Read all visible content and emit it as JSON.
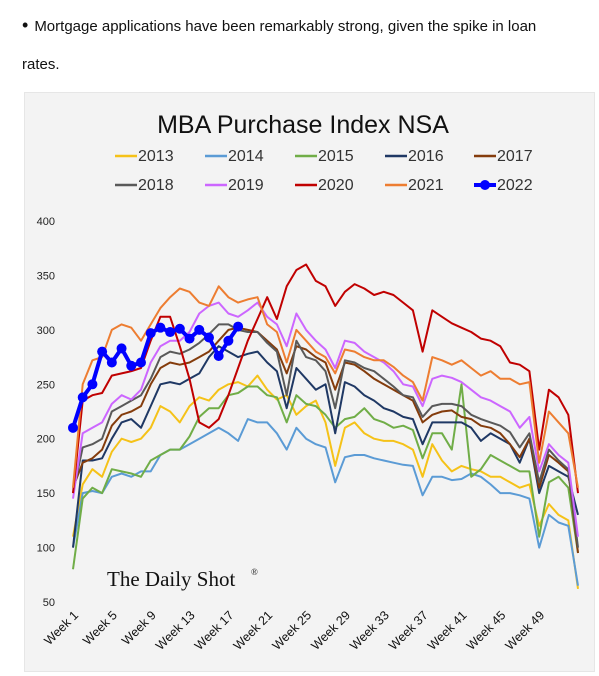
{
  "note": {
    "bullet": "•",
    "line1": "Mortgage applications have been remarkably strong, given the spike in loan",
    "line2": "rates."
  },
  "watermark": "The Daily Shot",
  "watermark_mark": "®",
  "chart_data": {
    "type": "line",
    "title": "MBA Purchase Index NSA",
    "xlabel": "",
    "ylabel": "",
    "ylim": [
      50,
      400
    ],
    "yticks": [
      50,
      100,
      150,
      200,
      250,
      300,
      350,
      400
    ],
    "x_tick_labels": [
      "Week 1",
      "Week 5",
      "Week 9",
      "Week 13",
      "Week 17",
      "Week 21",
      "Week 25",
      "Week 29",
      "Week 33",
      "Week 37",
      "Week 41",
      "Week 45",
      "Week 49"
    ],
    "x_tick_weeks": [
      1,
      5,
      9,
      13,
      17,
      21,
      25,
      29,
      33,
      37,
      41,
      45,
      49
    ],
    "grid": false,
    "legend": "top",
    "series": [
      {
        "name": "2013",
        "color": "#f5c218",
        "marker": false,
        "values": [
          110,
          158,
          172,
          165,
          188,
          200,
          197,
          200,
          210,
          230,
          225,
          215,
          230,
          238,
          235,
          245,
          250,
          252,
          248,
          258,
          245,
          236,
          240,
          222,
          230,
          235,
          215,
          175,
          210,
          215,
          205,
          200,
          198,
          198,
          195,
          190,
          165,
          195,
          180,
          170,
          175,
          172,
          170,
          165,
          165,
          160,
          155,
          158,
          120,
          140,
          130,
          125,
          62
        ]
      },
      {
        "name": "2014",
        "color": "#5b9bd5",
        "marker": false,
        "values": [
          100,
          150,
          152,
          150,
          165,
          168,
          165,
          170,
          170,
          185,
          190,
          190,
          195,
          200,
          205,
          210,
          205,
          198,
          218,
          215,
          215,
          205,
          190,
          210,
          200,
          195,
          192,
          160,
          183,
          185,
          185,
          182,
          180,
          178,
          176,
          175,
          148,
          165,
          165,
          162,
          163,
          168,
          165,
          158,
          150,
          150,
          148,
          145,
          100,
          130,
          123,
          120,
          65
        ]
      },
      {
        "name": "2015",
        "color": "#70ad47",
        "marker": false,
        "values": [
          80,
          145,
          155,
          150,
          172,
          170,
          168,
          165,
          180,
          185,
          190,
          190,
          202,
          220,
          228,
          228,
          240,
          242,
          248,
          248,
          240,
          238,
          215,
          240,
          232,
          230,
          222,
          210,
          218,
          220,
          228,
          218,
          215,
          210,
          212,
          208,
          182,
          205,
          205,
          190,
          250,
          165,
          172,
          185,
          180,
          175,
          170,
          170,
          110,
          160,
          165,
          155,
          95
        ]
      },
      {
        "name": "2016",
        "color": "#1f3864",
        "marker": false,
        "values": [
          100,
          180,
          180,
          182,
          200,
          215,
          218,
          210,
          230,
          250,
          252,
          250,
          255,
          260,
          275,
          285,
          280,
          275,
          278,
          280,
          270,
          262,
          228,
          265,
          255,
          245,
          250,
          205,
          252,
          248,
          240,
          235,
          228,
          225,
          220,
          218,
          195,
          215,
          215,
          215,
          215,
          210,
          198,
          205,
          200,
          195,
          178,
          200,
          150,
          175,
          170,
          165,
          130
        ]
      },
      {
        "name": "2017",
        "color": "#843c0c",
        "marker": false,
        "values": [
          155,
          178,
          182,
          190,
          212,
          222,
          225,
          230,
          250,
          265,
          270,
          268,
          270,
          275,
          280,
          290,
          300,
          302,
          300,
          298,
          290,
          282,
          260,
          285,
          282,
          275,
          270,
          245,
          270,
          268,
          262,
          255,
          250,
          245,
          240,
          235,
          215,
          222,
          225,
          226,
          220,
          218,
          212,
          210,
          205,
          195,
          183,
          200,
          155,
          185,
          178,
          170,
          95
        ]
      },
      {
        "name": "2018",
        "color": "#595959",
        "marker": false,
        "values": [
          150,
          192,
          195,
          200,
          225,
          230,
          235,
          240,
          255,
          275,
          280,
          278,
          282,
          288,
          296,
          305,
          305,
          300,
          298,
          298,
          288,
          280,
          240,
          290,
          275,
          272,
          262,
          228,
          272,
          270,
          265,
          262,
          255,
          248,
          240,
          238,
          220,
          230,
          232,
          232,
          230,
          222,
          218,
          215,
          212,
          206,
          192,
          205,
          160,
          190,
          180,
          172,
          100
        ]
      },
      {
        "name": "2019",
        "color": "#cc66ff",
        "marker": false,
        "values": [
          145,
          205,
          210,
          215,
          232,
          240,
          236,
          245,
          270,
          285,
          290,
          290,
          298,
          315,
          322,
          325,
          315,
          312,
          318,
          325,
          312,
          305,
          285,
          315,
          300,
          290,
          282,
          265,
          290,
          288,
          280,
          275,
          270,
          262,
          250,
          248,
          230,
          255,
          258,
          256,
          252,
          245,
          238,
          235,
          230,
          225,
          210,
          220,
          170,
          195,
          185,
          178,
          110
        ]
      },
      {
        "name": "2020",
        "color": "#c00000",
        "marker": false,
        "values": [
          150,
          235,
          240,
          242,
          258,
          260,
          262,
          265,
          290,
          312,
          312,
          285,
          255,
          215,
          210,
          218,
          240,
          265,
          290,
          310,
          330,
          310,
          340,
          355,
          360,
          345,
          340,
          322,
          335,
          342,
          338,
          332,
          335,
          332,
          325,
          318,
          280,
          318,
          312,
          306,
          302,
          298,
          292,
          290,
          285,
          270,
          268,
          262,
          190,
          245,
          238,
          222,
          150
        ]
      },
      {
        "name": "2021",
        "color": "#ed7d31",
        "marker": false,
        "values": [
          155,
          250,
          272,
          275,
          300,
          305,
          302,
          290,
          305,
          320,
          330,
          338,
          335,
          325,
          322,
          340,
          330,
          325,
          328,
          330,
          305,
          298,
          270,
          300,
          290,
          280,
          275,
          260,
          282,
          280,
          275,
          272,
          272,
          266,
          258,
          252,
          235,
          275,
          272,
          268,
          272,
          265,
          258,
          262,
          255,
          255,
          250,
          252,
          178,
          225,
          215,
          205,
          155
        ]
      },
      {
        "name": "2022",
        "color": "#0000ff",
        "marker": true,
        "values": [
          210,
          238,
          250,
          280,
          270,
          283,
          267,
          270,
          297,
          302,
          298,
          301,
          292,
          300,
          293,
          276,
          290,
          303
        ]
      }
    ]
  }
}
